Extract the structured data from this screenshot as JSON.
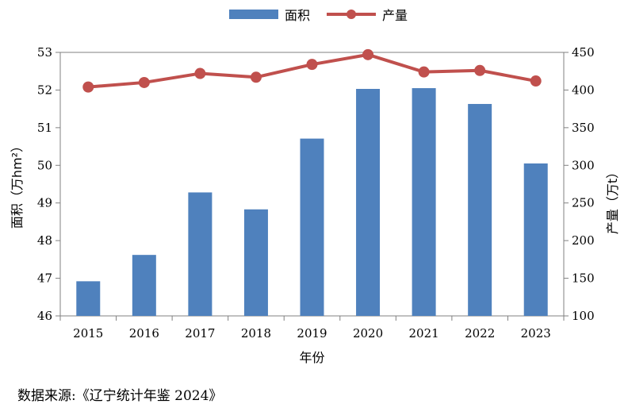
{
  "source_text": "数据来源:《辽宁统计年鉴 2024》",
  "chart_data": {
    "type": "bar+line",
    "categories": [
      "2015",
      "2016",
      "2017",
      "2018",
      "2019",
      "2020",
      "2021",
      "2022",
      "2023"
    ],
    "xlabel": "年份",
    "series": [
      {
        "name": "面积",
        "type": "bar",
        "axis": "left",
        "color": "#4f81bd",
        "values": [
          46.92,
          47.62,
          49.28,
          48.83,
          50.71,
          52.03,
          52.05,
          51.63,
          50.05
        ]
      },
      {
        "name": "产量",
        "type": "line",
        "axis": "right",
        "color": "#c0504d",
        "values": [
          404,
          410,
          422,
          417,
          434,
          447,
          424,
          426,
          412
        ]
      }
    ],
    "y_left": {
      "label": "面积（万hm²）",
      "range": [
        46,
        53
      ],
      "ticks": [
        "46",
        "47",
        "48",
        "49",
        "50",
        "51",
        "52",
        "53"
      ]
    },
    "y_right": {
      "label": "产量（万t）",
      "range": [
        100,
        450
      ],
      "ticks": [
        "100",
        "150",
        "200",
        "250",
        "300",
        "350",
        "400",
        "450"
      ]
    },
    "grid": false,
    "legend_position": "top-center"
  }
}
